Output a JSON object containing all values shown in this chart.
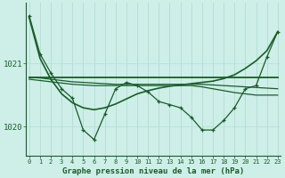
{
  "bg_color": "#ceeee8",
  "line_color": "#1a5c2a",
  "grid_color_v": "#b0ddd5",
  "grid_color_h": "#b8e0da",
  "title": "Graphe pression niveau de la mer (hPa)",
  "hours": [
    0,
    1,
    2,
    3,
    4,
    5,
    6,
    7,
    8,
    9,
    10,
    11,
    12,
    13,
    14,
    15,
    16,
    17,
    18,
    19,
    20,
    21,
    22,
    23
  ],
  "main_values": [
    1021.75,
    1021.15,
    1020.85,
    1020.6,
    1020.45,
    1019.95,
    1019.8,
    1020.2,
    1020.6,
    1020.7,
    1020.65,
    1020.55,
    1020.4,
    1020.35,
    1020.3,
    1020.15,
    1019.95,
    1019.95,
    1020.1,
    1020.3,
    1020.6,
    1020.65,
    1021.1,
    1021.5
  ],
  "flat_line": [
    1020.78,
    1020.78,
    1020.78,
    1020.78,
    1020.78,
    1020.78,
    1020.78,
    1020.78,
    1020.78,
    1020.78,
    1020.78,
    1020.78,
    1020.78,
    1020.78,
    1020.78,
    1020.78,
    1020.78,
    1020.78,
    1020.78,
    1020.78,
    1020.78,
    1020.78,
    1020.78,
    1020.78
  ],
  "slope_line": [
    1020.78,
    1020.77,
    1020.75,
    1020.73,
    1020.71,
    1020.7,
    1020.69,
    1020.68,
    1020.67,
    1020.67,
    1020.67,
    1020.67,
    1020.67,
    1020.67,
    1020.67,
    1020.67,
    1020.67,
    1020.66,
    1020.65,
    1020.64,
    1020.63,
    1020.62,
    1020.61,
    1020.6
  ],
  "slope_line2": [
    1020.75,
    1020.73,
    1020.71,
    1020.69,
    1020.67,
    1020.66,
    1020.65,
    1020.65,
    1020.65,
    1020.65,
    1020.65,
    1020.65,
    1020.65,
    1020.65,
    1020.65,
    1020.65,
    1020.63,
    1020.6,
    1020.57,
    1020.54,
    1020.52,
    1020.5,
    1020.5,
    1020.5
  ],
  "bowl_curve": [
    1021.72,
    1021.08,
    1020.75,
    1020.52,
    1020.38,
    1020.3,
    1020.27,
    1020.3,
    1020.36,
    1020.44,
    1020.52,
    1020.57,
    1020.61,
    1020.64,
    1020.66,
    1020.68,
    1020.7,
    1020.72,
    1020.76,
    1020.82,
    1020.92,
    1021.04,
    1021.2,
    1021.5
  ],
  "ylim_min": 1019.55,
  "ylim_max": 1021.95,
  "figsize": [
    3.2,
    2.0
  ],
  "dpi": 100
}
